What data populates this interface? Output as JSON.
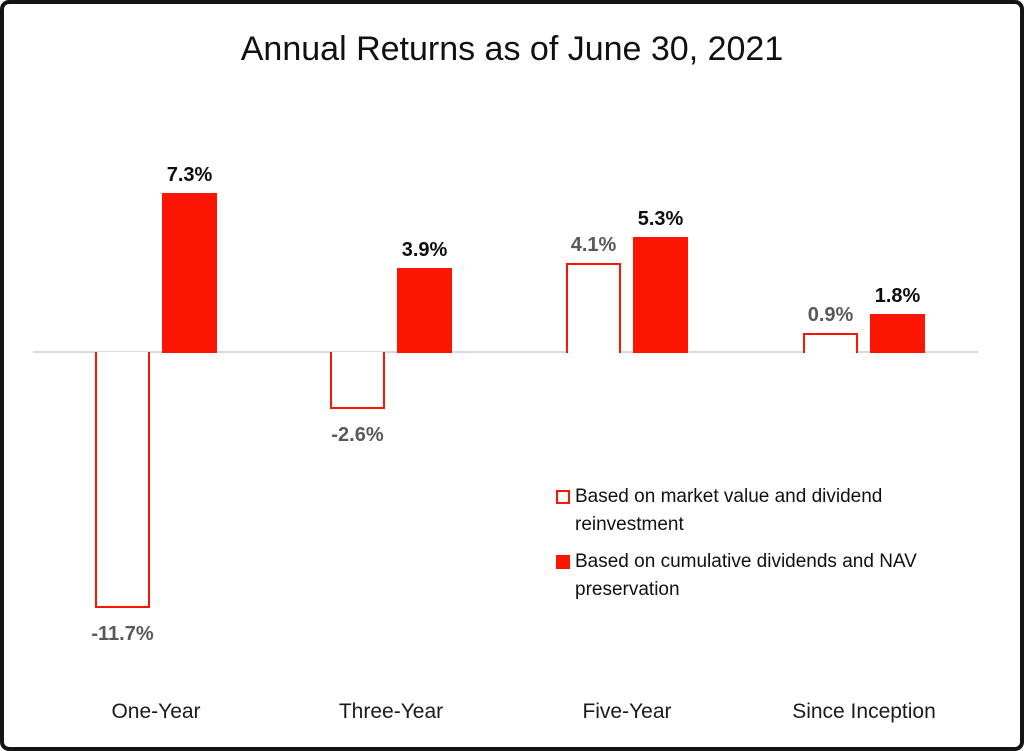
{
  "title": "Annual Returns as of June 30, 2021",
  "colors": {
    "accent_red": "#FC1503",
    "axis_line": "#D9D9D9",
    "series1_label_color": "#595959",
    "series2_label_color": "#0D0D0D"
  },
  "chart_data": {
    "type": "bar",
    "title": "Annual Returns as of June 30, 2021",
    "xlabel": "",
    "ylabel": "",
    "ylim": [
      -13,
      9
    ],
    "grid": false,
    "legend_position": "inside-bottom-right",
    "categories": [
      "One-Year",
      "Three-Year",
      "Five-Year",
      "Since Inception"
    ],
    "series": [
      {
        "name": "Based on market value and dividend reinvestment",
        "style": "outlined",
        "values": [
          -11.7,
          -2.6,
          4.1,
          0.9
        ],
        "labels": [
          "-11.7%",
          "-2.6%",
          "4.1%",
          "0.9%"
        ],
        "label_color": "#595959"
      },
      {
        "name": "Based on cumulative dividends and NAV preservation",
        "style": "solid",
        "values": [
          7.3,
          3.9,
          5.3,
          1.8
        ],
        "labels": [
          "7.3%",
          "3.9%",
          "5.3%",
          "1.8%"
        ],
        "label_color": "#0D0D0D"
      }
    ]
  },
  "legend": {
    "items": [
      {
        "label": "Based on market value and dividend reinvestment",
        "swatch": "outlined-red-square"
      },
      {
        "label": "Based on cumulative dividends and NAV preservation",
        "swatch": "solid-red-square"
      }
    ]
  }
}
